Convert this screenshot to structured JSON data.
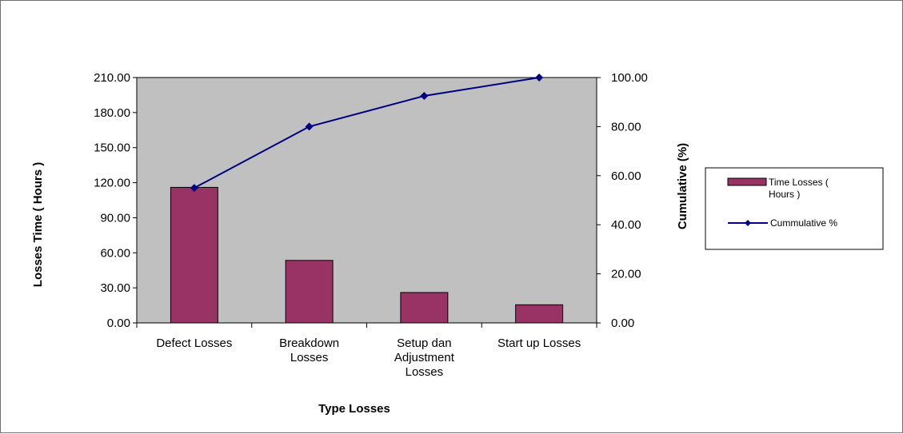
{
  "chart_data": {
    "type": "bar",
    "title": "",
    "xlabel": "Type  Losses",
    "ylabel": "Losses Time  ( Hours )",
    "y2label": "Cumulative  (%)",
    "categories": [
      [
        "Defect Losses"
      ],
      [
        "Breakdown",
        "Losses"
      ],
      [
        "Setup dan",
        "Adjustment",
        "Losses"
      ],
      [
        "Start up Losses"
      ]
    ],
    "ylim": [
      0,
      210
    ],
    "y2lim": [
      0,
      100
    ],
    "yticks": [
      "0.00",
      "30.00",
      "60.00",
      "90.00",
      "120.00",
      "150.00",
      "180.00",
      "210.00"
    ],
    "y2ticks": [
      "0.00",
      "20.00",
      "40.00",
      "60.00",
      "80.00",
      "100.00"
    ],
    "series": [
      {
        "name": "Time Losses  ( Hours )",
        "kind": "bar",
        "axis": "left",
        "values": [
          116,
          53.5,
          26,
          15.5
        ],
        "color": "#993366"
      },
      {
        "name": "Cummulative  %",
        "kind": "line",
        "axis": "right",
        "values": [
          55,
          80,
          92.5,
          100
        ],
        "color": "#000080"
      }
    ],
    "legend": {
      "position": "right",
      "items": [
        [
          "Time Losses  (",
          "Hours )"
        ],
        [
          "Cummulative  %"
        ]
      ]
    },
    "plot_background": "#c0c0c0",
    "grid": false
  }
}
